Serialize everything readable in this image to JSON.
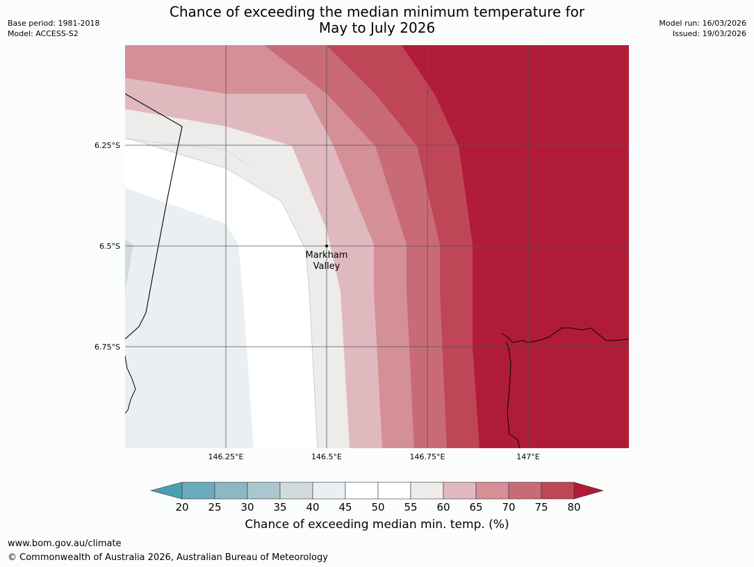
{
  "header": {
    "title_line1": "Chance of exceeding the median minimum temperature for",
    "title_line2": "May to July 2026",
    "base_period": "Base period: 1981-2018",
    "model": "Model: ACCESS-S2",
    "model_run": "Model run: 16/03/2026",
    "issued": "Issued: 19/03/2026"
  },
  "map": {
    "lat_labels": [
      "6.25°S",
      "6.5°S",
      "6.75°S"
    ],
    "lon_labels": [
      "146.25°E",
      "146.5°E",
      "146.75°E",
      "147°E"
    ],
    "location": {
      "name_line1": "Markham",
      "name_line2": "Valley",
      "lat": -6.5,
      "lon": 146.5
    }
  },
  "colorbar": {
    "ticks": [
      "20",
      "25",
      "30",
      "35",
      "40",
      "45",
      "50",
      "55",
      "60",
      "65",
      "70",
      "75",
      "80"
    ],
    "colors": {
      "lt20": "#4aa0b0",
      "c20_25": "#6aabbb",
      "c25_30": "#8bb8c4",
      "c30_35": "#a9c7cc",
      "c35_40": "#d2dbdc",
      "c40_45": "#e9eff2",
      "c45_50": "#ffffff",
      "c50_55": "#ffffff",
      "c55_60": "#eeecea",
      "c60_65": "#e0b9be",
      "c65_70": "#d48f97",
      "c70_75": "#c86b76",
      "c75_80": "#bf4656",
      "gt80": "#b01c38"
    },
    "title": "Chance of exceeding median min. temp. (%)"
  },
  "footer": {
    "url": "www.bom.gov.au/climate",
    "copyright": "© Commonwealth of Australia 2026, Australian Bureau of Meteorology"
  }
}
